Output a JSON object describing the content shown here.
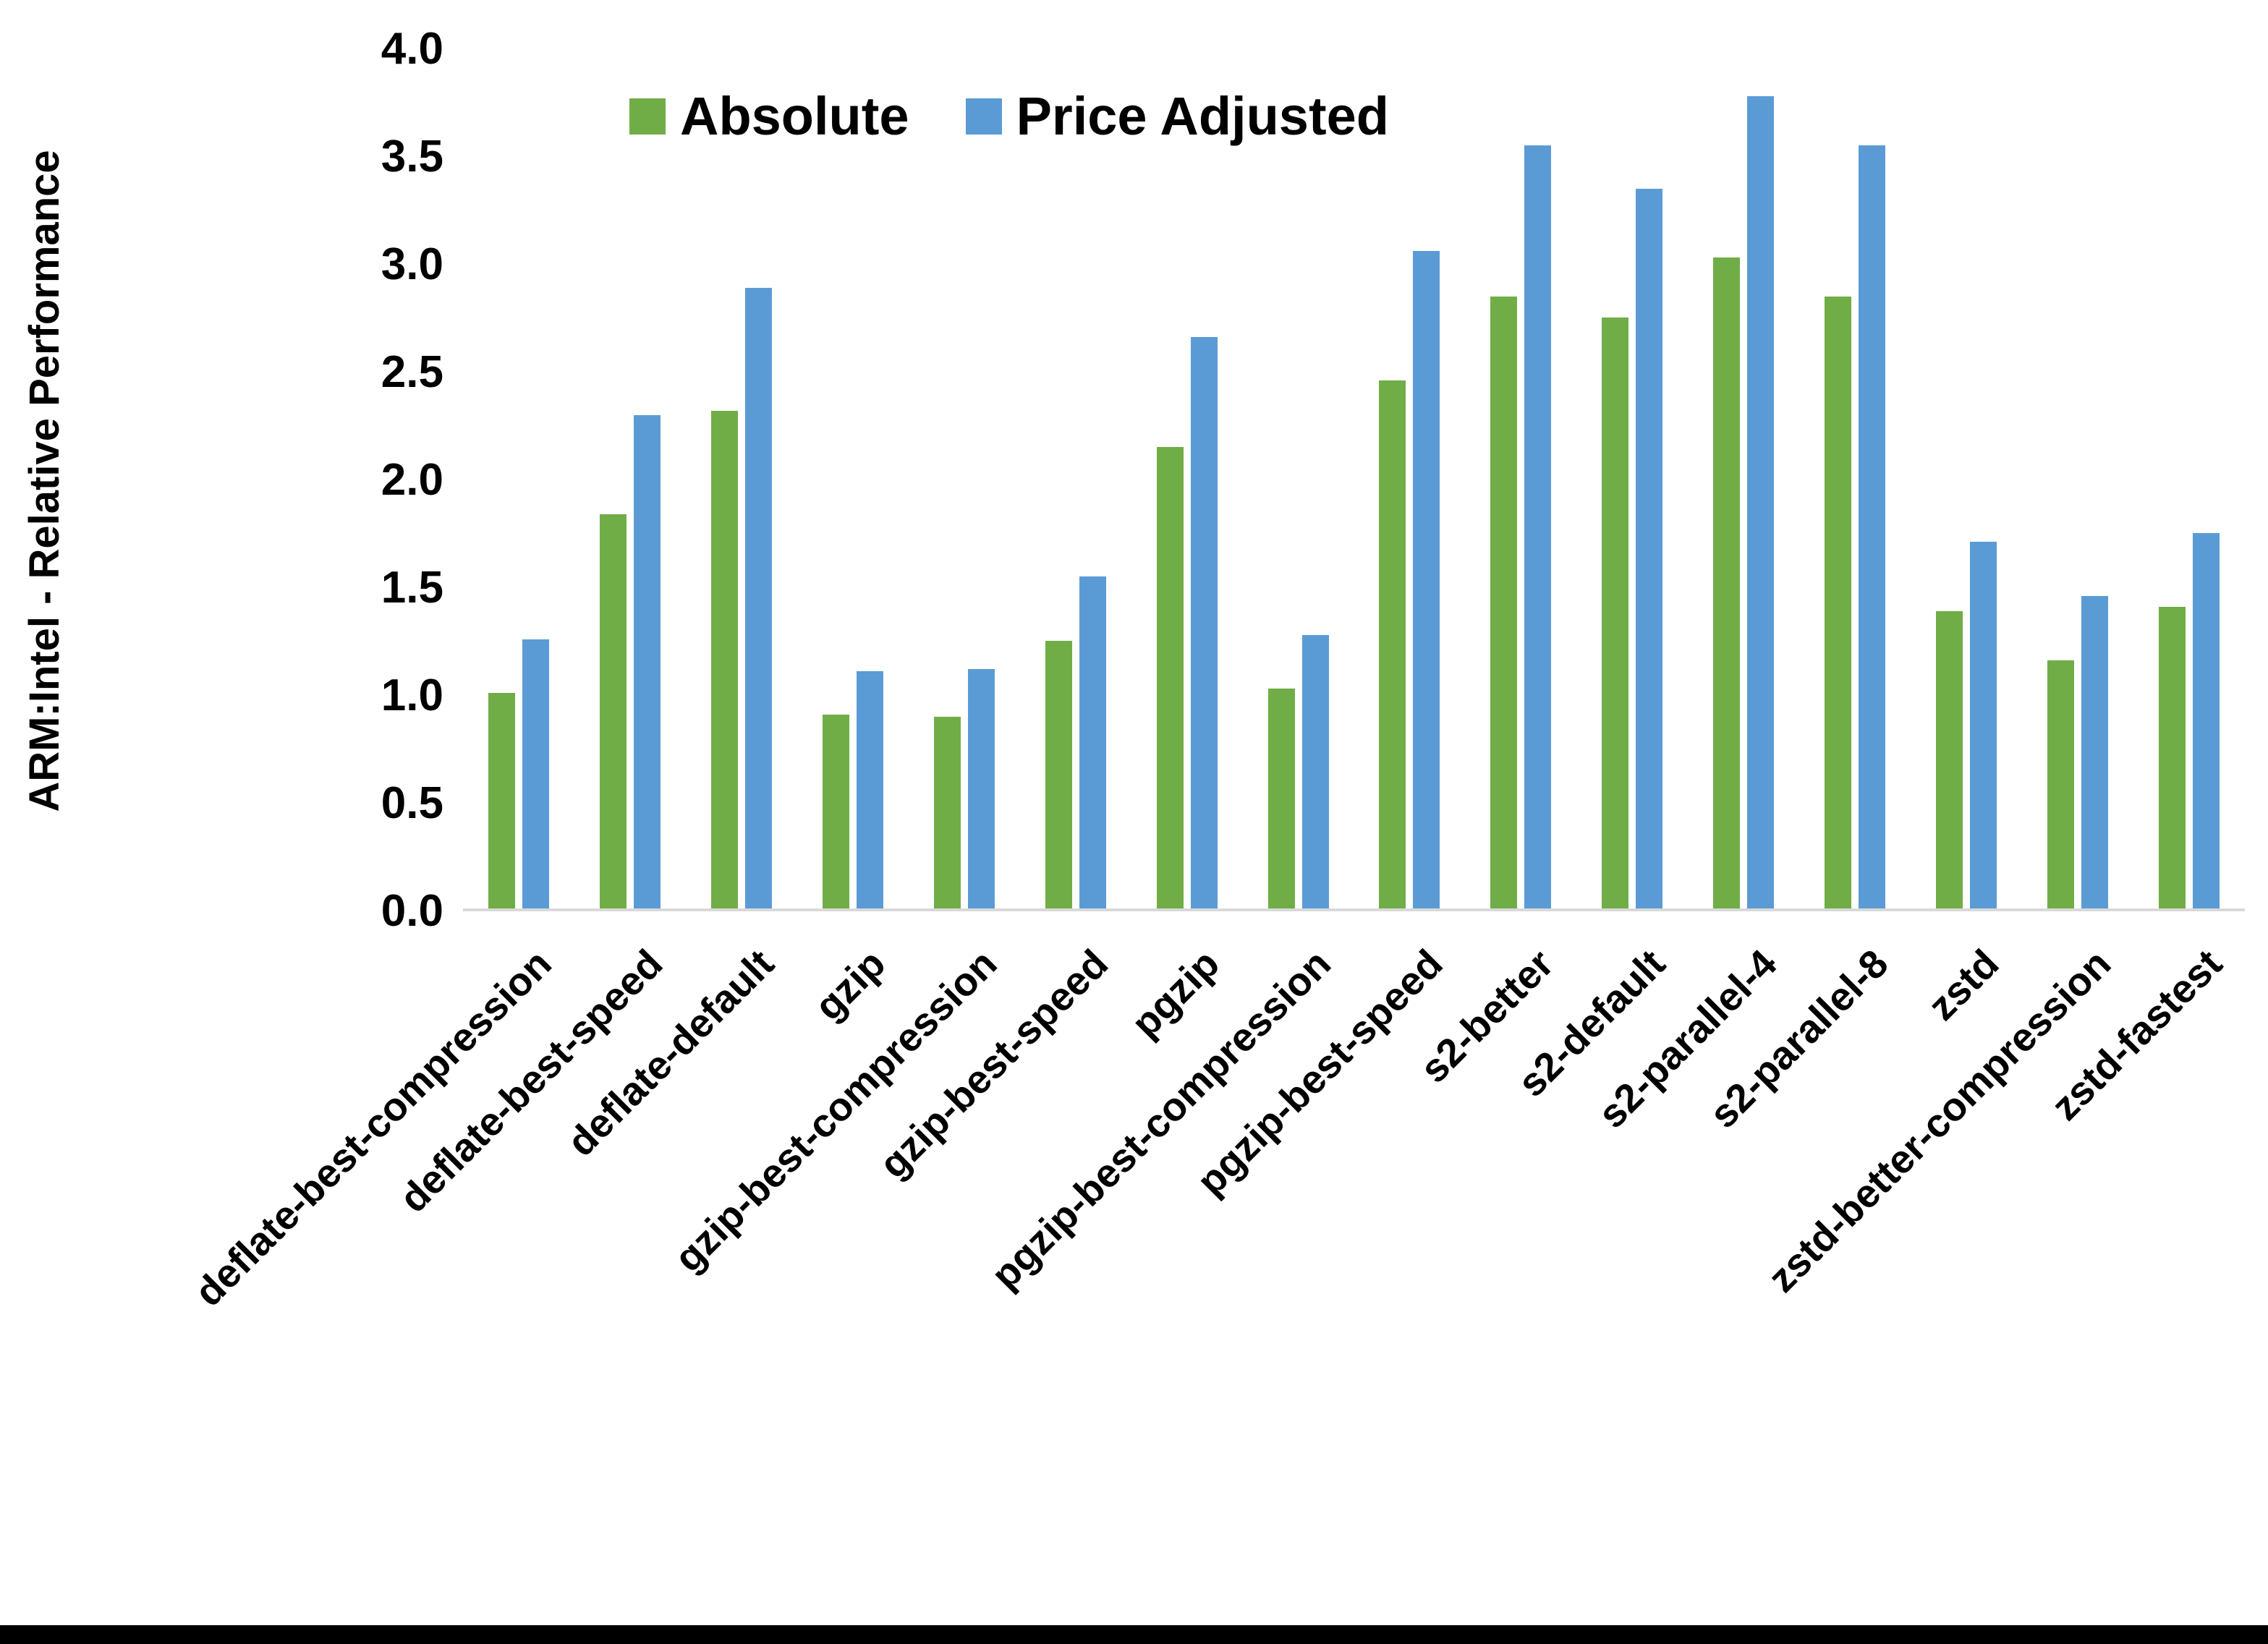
{
  "page": {
    "background": "#ffffff",
    "bottom_border_color": "#000000"
  },
  "chart_data": {
    "type": "bar",
    "title": "",
    "xlabel": "",
    "ylabel": "ARM:Intel - Relative Performance",
    "ylim": [
      0.0,
      4.0
    ],
    "yticks": [
      "0.0",
      "0.5",
      "1.0",
      "1.5",
      "2.0",
      "2.5",
      "3.0",
      "3.5",
      "4.0"
    ],
    "grid": false,
    "legend_position": "top",
    "axis_line_color": "#d9d9d9",
    "text_color": "#000000",
    "categories": [
      "deflate-best-compression",
      "deflate-best-speed",
      "deflate-default",
      "gzip",
      "gzip-best-compression",
      "gzip-best-speed",
      "pgzip",
      "pgzip-best-compression",
      "pgzip-best-speed",
      "s2-better",
      "s2-default",
      "s2-parallel-4",
      "s2-parallel-8",
      "zstd",
      "zstd-better-compression",
      "zstd-fastest"
    ],
    "series": [
      {
        "name": "Absolute",
        "color": "#70ad47",
        "values": [
          1.0,
          1.83,
          2.31,
          0.9,
          0.89,
          1.24,
          2.14,
          1.02,
          2.45,
          2.84,
          2.74,
          3.02,
          2.84,
          1.38,
          1.15,
          1.4
        ]
      },
      {
        "name": "Price Adjusted",
        "color": "#5b9bd5",
        "values": [
          1.25,
          2.29,
          2.88,
          1.1,
          1.11,
          1.54,
          2.65,
          1.27,
          3.05,
          3.54,
          3.34,
          3.77,
          3.54,
          1.7,
          1.45,
          1.74
        ]
      }
    ]
  }
}
